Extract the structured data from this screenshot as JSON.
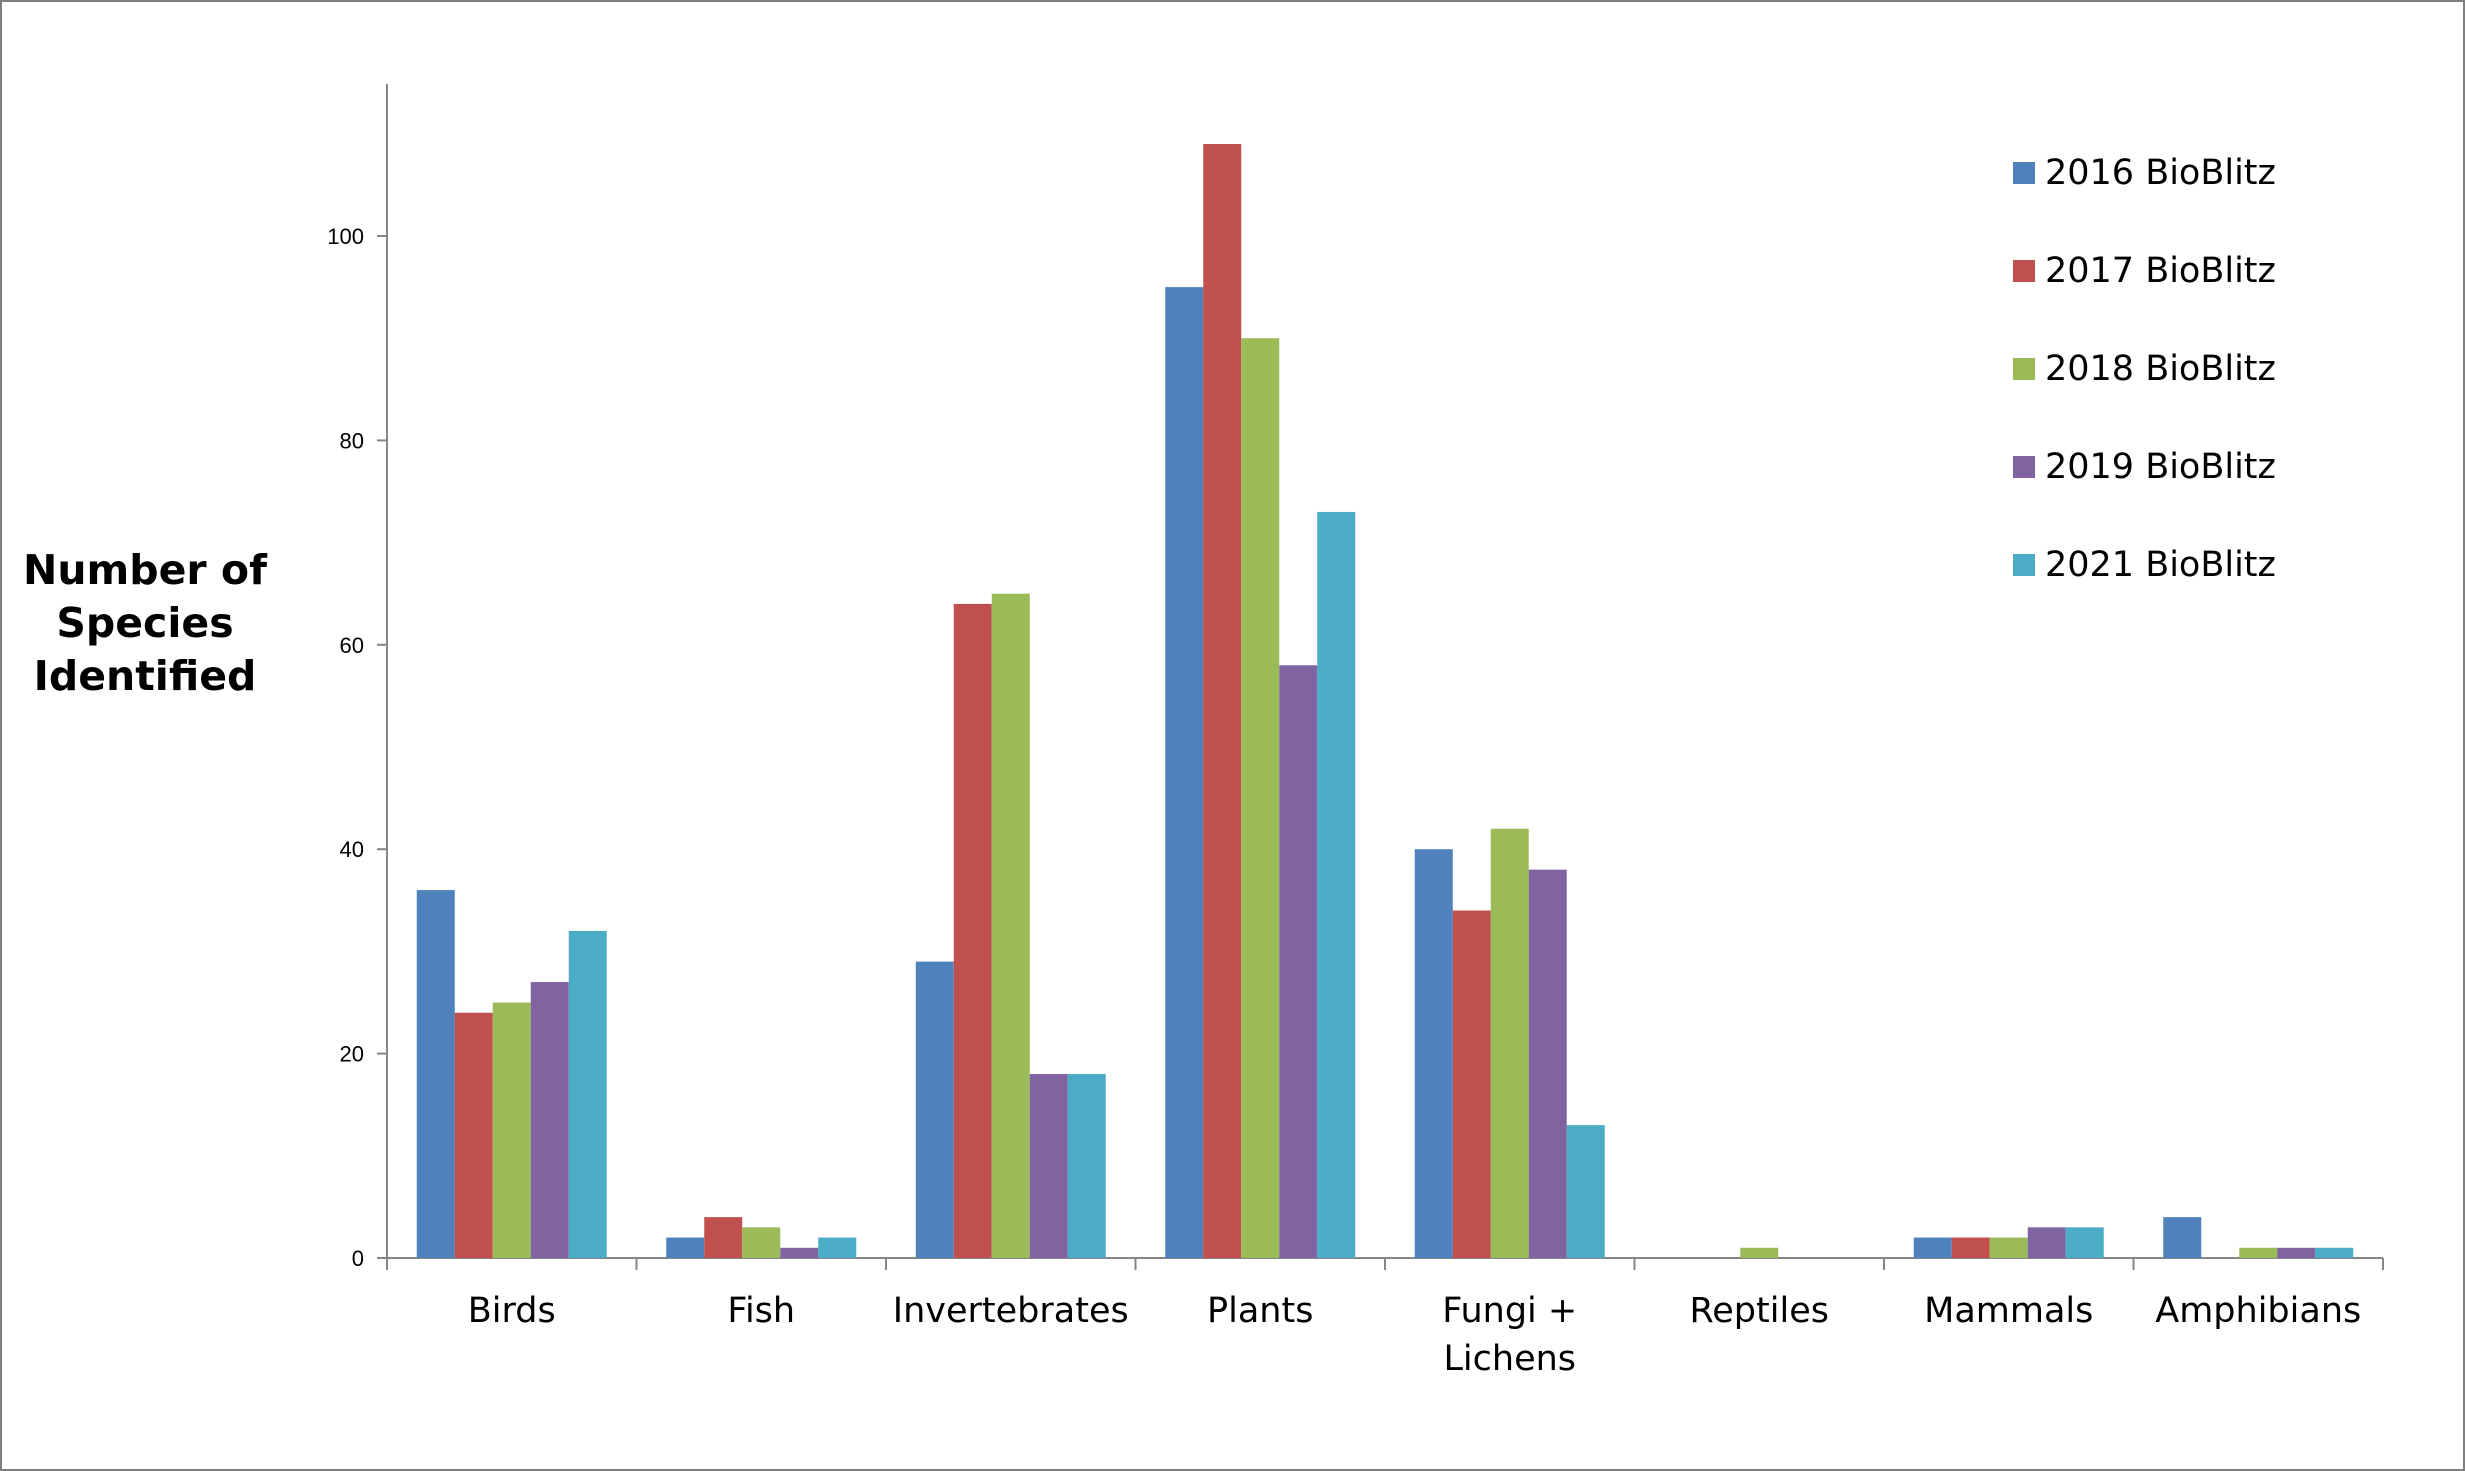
{
  "chart_data": {
    "type": "bar",
    "title": "",
    "xlabel": "",
    "ylabel": "Number of Species Identified",
    "ylabel_lines": [
      "Number of",
      "Species",
      "Identified"
    ],
    "ylim": [
      0,
      115
    ],
    "yticks": [
      0,
      20,
      40,
      60,
      80,
      100
    ],
    "grid": false,
    "legend_position": "top-right",
    "categories": [
      "Birds",
      "Fish",
      "Invertebrates",
      "Plants",
      "Fungi + Lichens",
      "Reptiles",
      "Mammals",
      "Amphibians"
    ],
    "category_label_lines": [
      [
        "Birds"
      ],
      [
        "Fish"
      ],
      [
        "Invertebrates"
      ],
      [
        "Plants"
      ],
      [
        "Fungi +",
        "Lichens"
      ],
      [
        "Reptiles"
      ],
      [
        "Mammals"
      ],
      [
        "Amphibians"
      ]
    ],
    "series": [
      {
        "name": "2016 BioBlitz",
        "color": "#4f81bd",
        "values": [
          36,
          2,
          29,
          95,
          40,
          0,
          2,
          4
        ]
      },
      {
        "name": "2017 BioBlitz",
        "color": "#c0504d",
        "values": [
          24,
          4,
          64,
          109,
          34,
          0,
          2,
          0
        ]
      },
      {
        "name": "2018 BioBlitz",
        "color": "#9bbb59",
        "values": [
          25,
          3,
          65,
          90,
          42,
          1,
          2,
          1
        ]
      },
      {
        "name": "2019 BioBlitz",
        "color": "#8064a2",
        "values": [
          27,
          1,
          18,
          58,
          38,
          0,
          3,
          1
        ]
      },
      {
        "name": "2021 BioBlitz",
        "color": "#4bacc6",
        "values": [
          32,
          2,
          18,
          73,
          13,
          0,
          3,
          1
        ]
      }
    ]
  }
}
